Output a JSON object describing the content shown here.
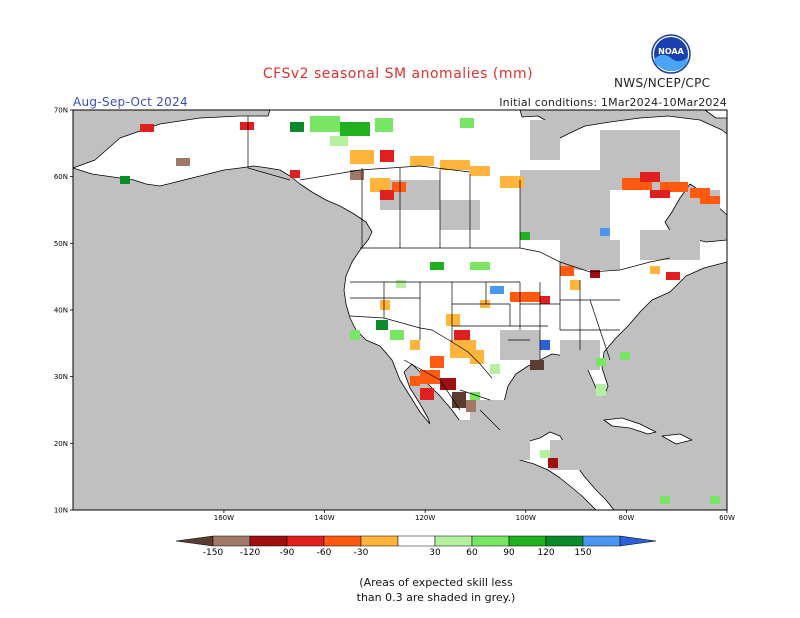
{
  "header": {
    "title": "CFSv2 seasonal SM anomalies (mm)",
    "agency": "NWS/NCEP/CPC",
    "logo_text": "NOAA",
    "period": "Aug-Sep-Oct 2024",
    "initial_conditions": "Initial conditions: 1Mar2024-10Mar2024"
  },
  "map": {
    "region": "North America",
    "projection": "lat-lon",
    "lon_range": [
      -190,
      -60
    ],
    "lat_range": [
      10,
      70
    ],
    "lat_ticks": [
      "10N",
      "20N",
      "30N",
      "40N",
      "50N",
      "60N",
      "70N"
    ],
    "lon_ticks": [
      "160W",
      "140W",
      "120W",
      "100W",
      "80W",
      "60W"
    ],
    "colors": {
      "ocean": "#c0c0c0",
      "low_skill": "#c0c0c0",
      "land_no_anomaly": "#ffffff",
      "outline": "#000000"
    }
  },
  "legend": {
    "unit": "mm",
    "bins": [
      {
        "range": "< -150",
        "color": "#5c3c30"
      },
      {
        "range": "-150 to -120",
        "color": "#a07868"
      },
      {
        "range": "-120 to -90",
        "color": "#a01010"
      },
      {
        "range": "-90 to -60",
        "color": "#e02020"
      },
      {
        "range": "-60 to -30",
        "color": "#ff5a10"
      },
      {
        "range": "-30 to -0",
        "color": "#ffb43c"
      },
      {
        "range": "-30 to 30",
        "color": "#ffffff"
      },
      {
        "range": "30 to 60",
        "color": "#b4f0a0"
      },
      {
        "range": "60 to 90",
        "color": "#78e664"
      },
      {
        "range": "90 to 120",
        "color": "#20b020"
      },
      {
        "range": "120 to 150",
        "color": "#0a8a2a"
      },
      {
        "range": "150 to 180",
        "color": "#4a96f0"
      },
      {
        "range": "> 180",
        "color": "#2a60d8"
      }
    ],
    "tick_labels": [
      "-150",
      "-120",
      "-90",
      "-60",
      "-30",
      "30",
      "60",
      "90",
      "120",
      "150"
    ]
  },
  "footnote": [
    "(Areas of expected skill less",
    "than 0.3 are shaded in grey.)"
  ]
}
